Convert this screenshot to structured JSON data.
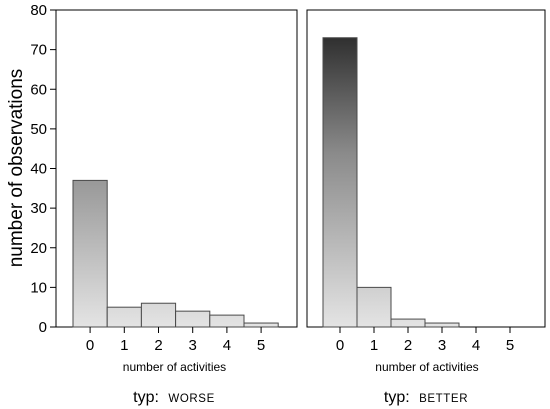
{
  "chart_data": {
    "type": "bar",
    "ylabel": "number of observations",
    "ylim": [
      0,
      80
    ],
    "yticks": [
      0,
      10,
      20,
      30,
      40,
      50,
      60,
      70,
      80
    ],
    "grid": false,
    "panels": [
      {
        "title_prefix": "typ:",
        "title_group": "WORSE",
        "xlabel": "number of activities",
        "categories": [
          "0",
          "1",
          "2",
          "3",
          "4",
          "5"
        ],
        "values": [
          37,
          5,
          6,
          4,
          3,
          1
        ]
      },
      {
        "title_prefix": "typ:",
        "title_group": "BETTER",
        "xlabel": "number of activities",
        "categories": [
          "0",
          "1",
          "2",
          "3",
          "4",
          "5"
        ],
        "values": [
          73,
          10,
          2,
          1,
          0,
          0
        ]
      }
    ]
  }
}
